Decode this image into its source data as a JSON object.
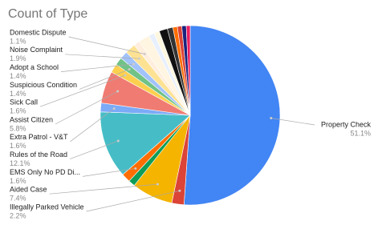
{
  "chart_data": {
    "type": "pie",
    "title": "Count of Type",
    "categories": [
      "Property Check",
      "Illegally Parked Vehicle",
      "Aided Case",
      null,
      "EMS Only No PD Di...",
      "Rules of the Road",
      "Extra Patrol - V&T",
      "Assist Citizen",
      "Sick Call",
      "Suspicious Condition",
      "Adopt a School",
      "Noise Complaint",
      "Domestic Dispute",
      null,
      null,
      null,
      null,
      null,
      null,
      null,
      null,
      null
    ],
    "values": [
      51.1,
      2.2,
      7.4,
      1.2,
      1.6,
      12.1,
      1.6,
      5.8,
      1.6,
      1.4,
      1.4,
      1.9,
      1.1,
      2.0,
      1.0,
      1.0,
      1.5,
      1.0,
      0.8,
      0.8,
      0.8,
      0.7
    ],
    "value_labels": [
      "51.1%",
      "2.2%",
      "7.4%",
      null,
      "1.6%",
      "12.1%",
      "1.6%",
      "5.8%",
      "1.6%",
      "1.4%",
      "1.4%",
      "1.9%",
      "1.1%",
      null,
      null,
      null,
      null,
      null,
      null,
      null,
      null,
      null
    ],
    "colors": [
      "#4285f4",
      "#db4437",
      "#f4b400",
      "#0f9d58",
      "#ff6d01",
      "#46bdc6",
      "#7baaf7",
      "#f07b72",
      "#fcd04f",
      "#71c287",
      "#a1c2fa",
      "#fde293",
      "#ffeedd",
      "#fff5e0",
      "#e8f0fe",
      "#fef7e0",
      "#111111",
      "#333333",
      "#ff6d01",
      "#db4437",
      "#1a237e",
      "#e91e63"
    ]
  }
}
